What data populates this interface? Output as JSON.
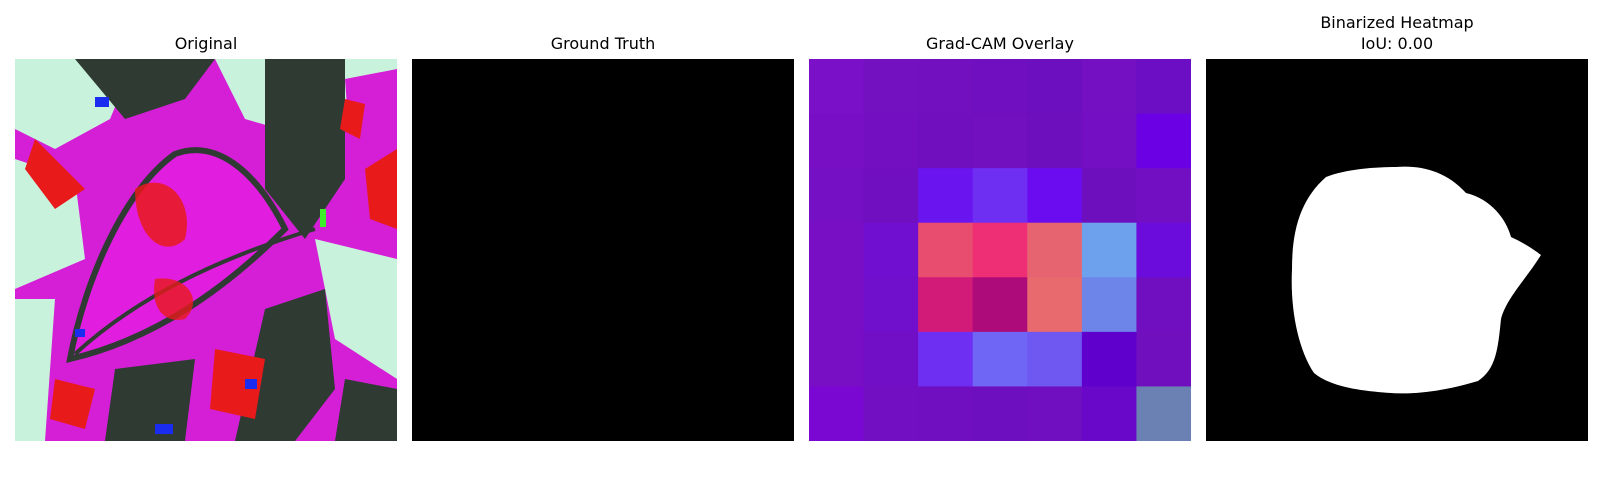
{
  "figure": {
    "panels": [
      {
        "id": "original",
        "title": "Original"
      },
      {
        "id": "ground_truth",
        "title": "Ground Truth"
      },
      {
        "id": "gradcam_overlay",
        "title": "Grad-CAM Overlay"
      },
      {
        "id": "binarized_heatmap",
        "title": "Binarized Heatmap",
        "subtitle": "IoU: 0.00"
      }
    ]
  },
  "colors": {
    "background": "#ffffff",
    "mask_background": "#000000",
    "mask_foreground": "#ffffff",
    "leaf_magenta": "#e11ee0",
    "leaf_red": "#e81a1a",
    "leaf_pale_green": "#c9f2dc",
    "shadow_dark": "#2f3a33"
  },
  "gradcam_grid": {
    "rows": 7,
    "cols": 7,
    "cells": [
      [
        "#7a10c8",
        "#7310c0",
        "#7210bf",
        "#700fbf",
        "#6c0fbe",
        "#750fc2",
        "#6c0fc4"
      ],
      [
        "#780fc4",
        "#730fc0",
        "#700fbe",
        "#720fbe",
        "#6e0fbe",
        "#740fc4",
        "#6b00e4"
      ],
      [
        "#7610c4",
        "#700fc0",
        "#6a14f0",
        "#6f2ff3",
        "#6b0cf0",
        "#6e0fbe",
        "#720fc3"
      ],
      [
        "#780fc4",
        "#700fcf",
        "#e84c6e",
        "#ee2f75",
        "#e66470",
        "#6da0ed",
        "#6b0cdc"
      ],
      [
        "#780fc4",
        "#700fcc",
        "#d21a78",
        "#ad0a7a",
        "#e86a6f",
        "#6d84e8",
        "#700fc0"
      ],
      [
        "#780fc4",
        "#700fc6",
        "#6f2ff3",
        "#6f66f5",
        "#6f57f2",
        "#6000cc",
        "#700fbe"
      ],
      [
        "#7a08d2",
        "#720fc2",
        "#700fbf",
        "#6d0fbe",
        "#700fbf",
        "#6a08c9",
        "#6b80b3"
      ]
    ]
  }
}
